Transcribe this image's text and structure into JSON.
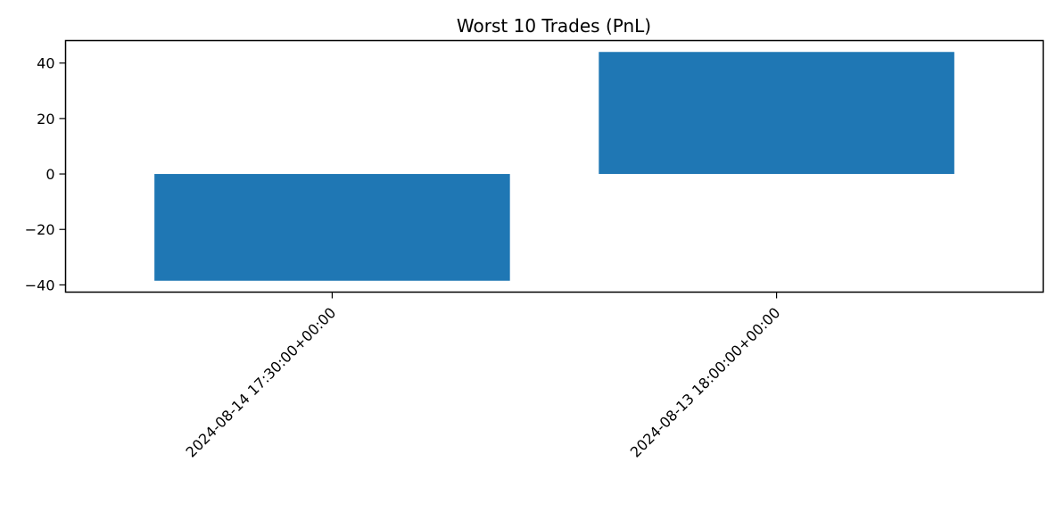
{
  "chart_data": {
    "type": "bar",
    "title": "Worst 10 Trades (PnL)",
    "xlabel": "",
    "ylabel": "",
    "categories": [
      "2024-08-14 17:30:00+00:00",
      "2024-08-13 18:00:00+00:00"
    ],
    "values": [
      -38.5,
      44.0
    ],
    "ylim": [
      -42.6,
      48.1
    ],
    "yticks": [
      -40,
      -20,
      0,
      20,
      40
    ],
    "ytick_labels": [
      "−40",
      "−20",
      "0",
      "20",
      "40"
    ],
    "grid": false,
    "bar_color": "#1f77b4"
  }
}
